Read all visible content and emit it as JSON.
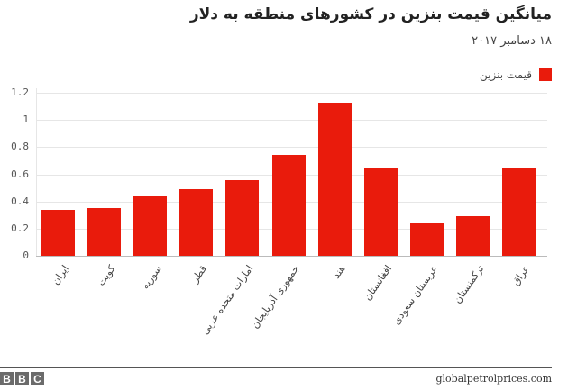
{
  "header": {
    "title": "میانگین قیمت بنزین در کشورهای منطقه به دلار",
    "subtitle": "۱۸ دسامبر ۲۰۱۷"
  },
  "legend": {
    "label": "قیمت بنزین",
    "color": "#e91b0c"
  },
  "footer": {
    "logo_letters": [
      "B",
      "B",
      "C"
    ],
    "source": "globalpetrolprices.com"
  },
  "chart_data": {
    "type": "bar",
    "title": "میانگین قیمت بنزین در کشورهای منطقه به دلار",
    "subtitle": "۱۸ دسامبر ۲۰۱۷",
    "xlabel": "",
    "ylabel": "",
    "ylim": [
      0,
      1.2
    ],
    "yticks": [
      "0",
      "0.2",
      "0.4",
      "0.6",
      "0.8",
      "1",
      "1.2"
    ],
    "grid": true,
    "legend_position": "top-right",
    "categories": [
      "ایران",
      "کویت",
      "سوریه",
      "قطر",
      "امارات متحده عربی",
      "جمهوری آذربایجان",
      "هند",
      "افغانستان",
      "عربستان سعودی",
      "ترکمنستان",
      "عراق"
    ],
    "series": [
      {
        "name": "قیمت بنزین",
        "color": "#e91b0c",
        "values": [
          0.34,
          0.35,
          0.44,
          0.49,
          0.56,
          0.74,
          1.13,
          0.65,
          0.24,
          0.29,
          0.64
        ]
      }
    ]
  }
}
